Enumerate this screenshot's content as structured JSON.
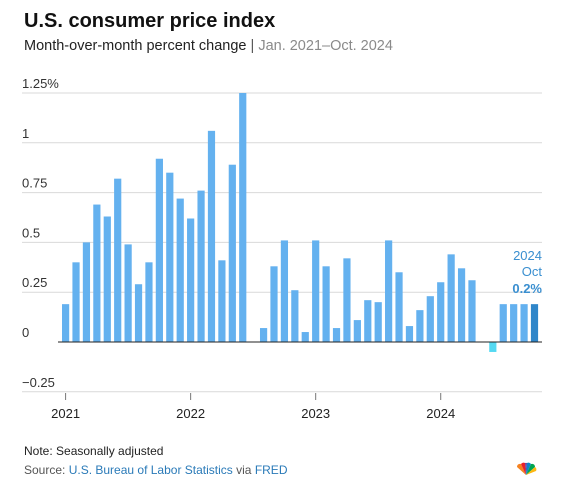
{
  "title": "U.S. consumer price index",
  "subtitle": {
    "main": "Month-over-month percent change",
    "separator": "|",
    "range": "Jan. 2021–Oct. 2024"
  },
  "note": "Note: Seasonally adjusted",
  "source": {
    "prefix": "Source: ",
    "org": "U.S. Bureau of Labor Statistics",
    "via": " via ",
    "db": "FRED"
  },
  "colors": {
    "bar": "#64b1ef",
    "bar_highlight": "#2f86c9",
    "bar_negative": "#54d9f2",
    "grid": "#d9d9d9",
    "zero_line": "#222222",
    "annotation": "#3a8fd0"
  },
  "icons": {
    "logo": "peacock-logo-icon"
  },
  "chart_data": {
    "type": "bar",
    "title": "U.S. consumer price index",
    "xlabel": "",
    "ylabel": "",
    "ylim": [
      -0.25,
      1.25
    ],
    "yticks": [
      {
        "value": 1.25,
        "label": "1.25%"
      },
      {
        "value": 1,
        "label": "1"
      },
      {
        "value": 0.75,
        "label": "0.75"
      },
      {
        "value": 0.5,
        "label": "0.5"
      },
      {
        "value": 0.25,
        "label": "0.25"
      },
      {
        "value": 0,
        "label": "0"
      },
      {
        "value": -0.25,
        "label": "−0.25"
      }
    ],
    "xticks": [
      {
        "index": 0,
        "label": "2021"
      },
      {
        "index": 12,
        "label": "2022"
      },
      {
        "index": 24,
        "label": "2023"
      },
      {
        "index": 36,
        "label": "2024"
      }
    ],
    "categories": [
      "2021-01",
      "2021-02",
      "2021-03",
      "2021-04",
      "2021-05",
      "2021-06",
      "2021-07",
      "2021-08",
      "2021-09",
      "2021-10",
      "2021-11",
      "2021-12",
      "2022-01",
      "2022-02",
      "2022-03",
      "2022-04",
      "2022-05",
      "2022-06",
      "2022-07",
      "2022-08",
      "2022-09",
      "2022-10",
      "2022-11",
      "2022-12",
      "2023-01",
      "2023-02",
      "2023-03",
      "2023-04",
      "2023-05",
      "2023-06",
      "2023-07",
      "2023-08",
      "2023-09",
      "2023-10",
      "2023-11",
      "2023-12",
      "2024-01",
      "2024-02",
      "2024-03",
      "2024-04",
      "2024-05",
      "2024-06",
      "2024-07",
      "2024-08",
      "2024-09",
      "2024-10"
    ],
    "values": [
      0.19,
      0.4,
      0.5,
      0.69,
      0.63,
      0.82,
      0.49,
      0.29,
      0.4,
      0.92,
      0.85,
      0.72,
      0.62,
      0.76,
      1.06,
      0.41,
      0.89,
      1.25,
      0.0,
      0.07,
      0.38,
      0.51,
      0.26,
      0.05,
      0.51,
      0.38,
      0.07,
      0.42,
      0.11,
      0.21,
      0.2,
      0.51,
      0.35,
      0.08,
      0.16,
      0.23,
      0.3,
      0.44,
      0.37,
      0.31,
      0.0,
      -0.05,
      0.19,
      0.19,
      0.19,
      0.19
    ],
    "highlight_index": 45,
    "annotation": {
      "year": "2024",
      "month": "Oct",
      "value": "0.2%"
    }
  }
}
